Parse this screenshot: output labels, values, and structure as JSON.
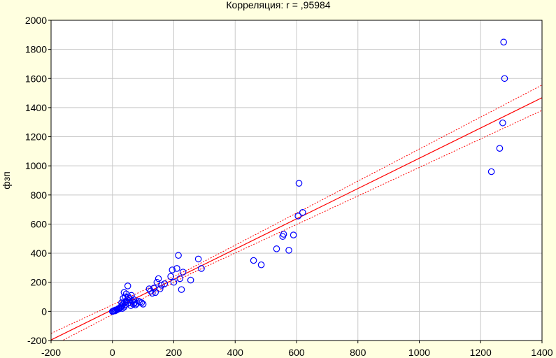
{
  "chart_data": {
    "type": "scatter",
    "title": "Корреляция: r =  ,95984",
    "xlabel": "",
    "ylabel": "фзп",
    "xlim": [
      -200,
      1400
    ],
    "ylim": [
      -200,
      2000
    ],
    "xticks": [
      -200,
      0,
      200,
      400,
      600,
      800,
      1000,
      1200,
      1400
    ],
    "yticks": [
      -200,
      0,
      200,
      400,
      600,
      800,
      1000,
      1200,
      1400,
      1600,
      1800,
      2000
    ],
    "grid": true,
    "series": [
      {
        "marker": "open-circle",
        "points": [
          [
            0,
            0
          ],
          [
            2,
            2
          ],
          [
            5,
            5
          ],
          [
            8,
            3
          ],
          [
            10,
            10
          ],
          [
            12,
            8
          ],
          [
            15,
            12
          ],
          [
            18,
            15
          ],
          [
            20,
            20
          ],
          [
            22,
            18
          ],
          [
            25,
            25
          ],
          [
            28,
            30
          ],
          [
            30,
            40
          ],
          [
            32,
            20
          ],
          [
            35,
            50
          ],
          [
            38,
            30
          ],
          [
            40,
            60
          ],
          [
            42,
            45
          ],
          [
            45,
            70
          ],
          [
            48,
            80
          ],
          [
            50,
            55
          ],
          [
            52,
            100
          ],
          [
            55,
            90
          ],
          [
            58,
            60
          ],
          [
            60,
            40
          ],
          [
            62,
            110
          ],
          [
            65,
            70
          ],
          [
            68,
            50
          ],
          [
            70,
            80
          ],
          [
            72,
            60
          ],
          [
            75,
            45
          ],
          [
            80,
            55
          ],
          [
            85,
            70
          ],
          [
            90,
            65
          ],
          [
            95,
            60
          ],
          [
            100,
            50
          ],
          [
            30,
            60
          ],
          [
            35,
            90
          ],
          [
            38,
            130
          ],
          [
            42,
            100
          ],
          [
            45,
            120
          ],
          [
            50,
            175
          ],
          [
            120,
            155
          ],
          [
            125,
            140
          ],
          [
            130,
            125
          ],
          [
            135,
            160
          ],
          [
            140,
            130
          ],
          [
            145,
            200
          ],
          [
            150,
            225
          ],
          [
            155,
            155
          ],
          [
            160,
            180
          ],
          [
            170,
            190
          ],
          [
            190,
            240
          ],
          [
            195,
            285
          ],
          [
            200,
            200
          ],
          [
            210,
            295
          ],
          [
            215,
            385
          ],
          [
            220,
            225
          ],
          [
            225,
            150
          ],
          [
            230,
            270
          ],
          [
            255,
            215
          ],
          [
            280,
            360
          ],
          [
            290,
            295
          ],
          [
            460,
            350
          ],
          [
            485,
            320
          ],
          [
            535,
            430
          ],
          [
            555,
            515
          ],
          [
            558,
            530
          ],
          [
            575,
            420
          ],
          [
            590,
            525
          ],
          [
            605,
            655
          ],
          [
            608,
            880
          ],
          [
            620,
            680
          ],
          [
            1235,
            960
          ],
          [
            1262,
            1120
          ],
          [
            1272,
            1295
          ],
          [
            1275,
            1850
          ],
          [
            1278,
            1600
          ]
        ]
      }
    ],
    "regression": {
      "intercept": 12,
      "slope": 1.04,
      "line_color": "#ff0000",
      "confidence_band": "dotted"
    },
    "colors": {
      "background": "#ffffe0",
      "plot_background": "#ffffff",
      "marker": "#0000ff",
      "regression": "#ff0000",
      "grid": "#c8c8c8",
      "axis": "#000000"
    }
  }
}
